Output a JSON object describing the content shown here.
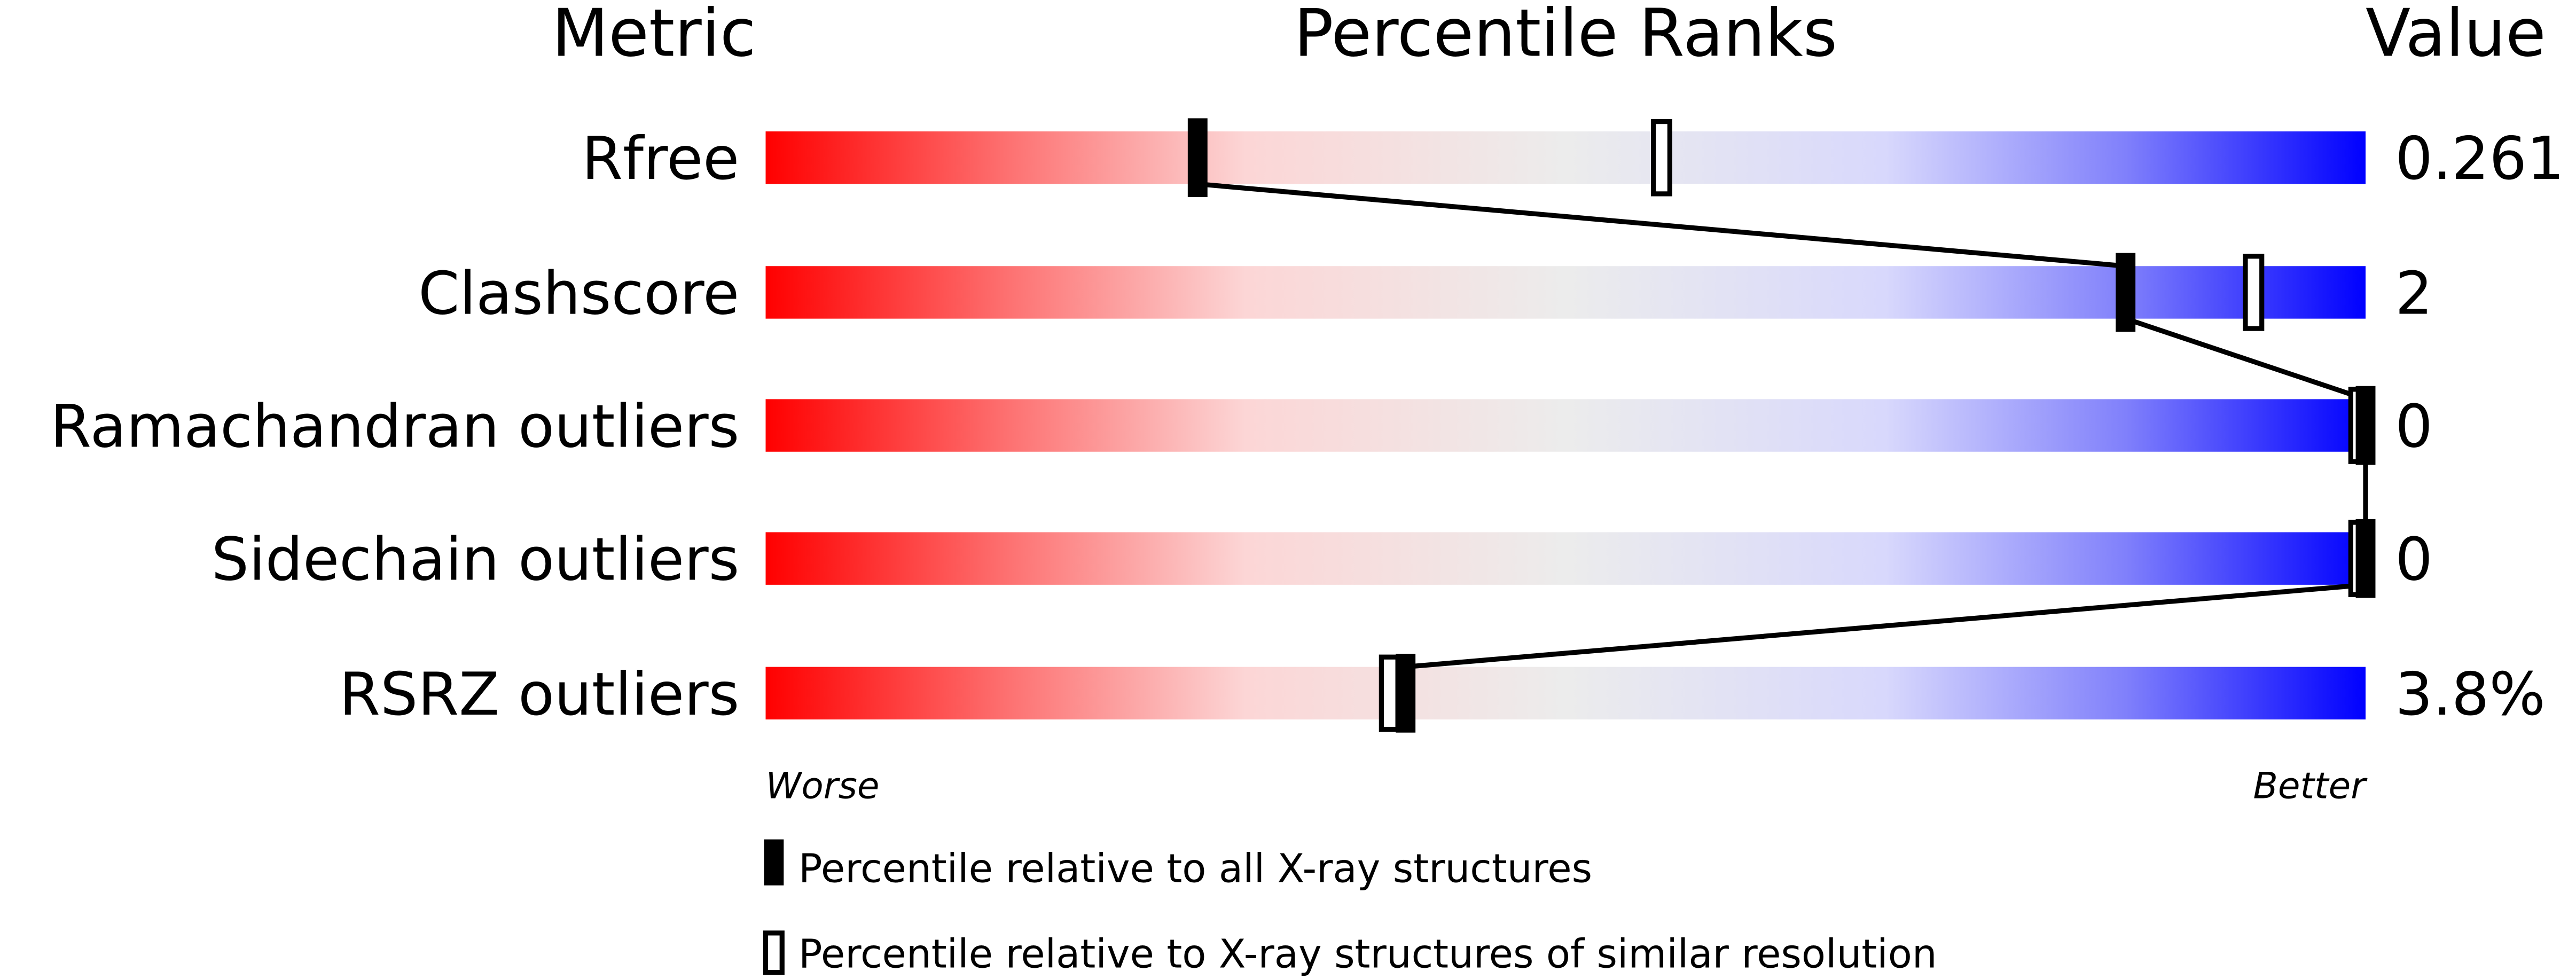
{
  "headers": {
    "metric": "Metric",
    "percentile": "Percentile Ranks",
    "value": "Value"
  },
  "axis": {
    "worse": "Worse",
    "better": "Better"
  },
  "legend": {
    "all": "Percentile relative to all X-ray structures",
    "similar": "Percentile relative to X-ray structures of similar resolution"
  },
  "colors": {
    "worse": "#ff0000",
    "neutral": "#ececec",
    "better": "#0000ff",
    "marker": "#000000"
  },
  "chart_data": {
    "type": "percentile-slider",
    "xlim": [
      0,
      100
    ],
    "rows": [
      {
        "metric": "Rfree",
        "value": "0.261",
        "percentile_all": 27,
        "percentile_similar": 56
      },
      {
        "metric": "Clashscore",
        "value": "2",
        "percentile_all": 85,
        "percentile_similar": 93
      },
      {
        "metric": "Ramachandran outliers",
        "value": "0",
        "percentile_all": 100,
        "percentile_similar": 100
      },
      {
        "metric": "Sidechain outliers",
        "value": "0",
        "percentile_all": 100,
        "percentile_similar": 100
      },
      {
        "metric": "RSRZ outliers",
        "value": "3.8%",
        "percentile_all": 40,
        "percentile_similar": 39
      }
    ]
  }
}
